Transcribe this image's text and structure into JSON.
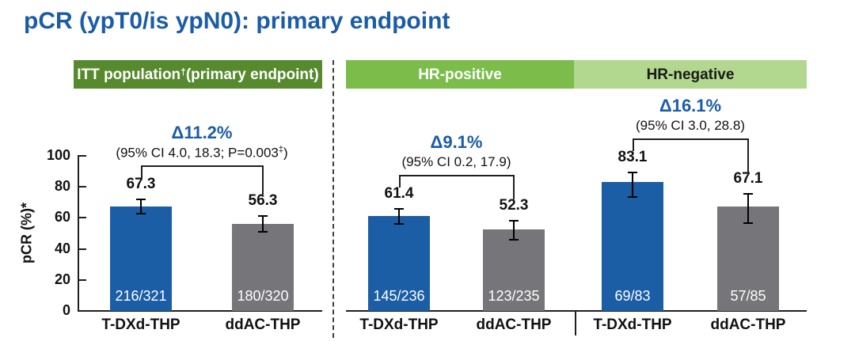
{
  "title": "pCR (ypT0/is ypN0): primary endpoint",
  "colors": {
    "title_blue": "#1B5CA8",
    "delta_blue": "#1B5CA8",
    "bar_blue": "#1B5EA6",
    "bar_gray": "#76767A",
    "header_itt_green": "#578A2E",
    "header_hrpos_green": "#7BBC4B",
    "header_hrneg_green": "#B2D78E",
    "axis_black": "#1f1f1f"
  },
  "panels": {
    "itt": {
      "pre": "ITT population",
      "sup": "†",
      "post": " (primary endpoint)"
    },
    "hr_positive": {
      "label": "HR-positive"
    },
    "hr_negative": {
      "label": "HR-negative"
    }
  },
  "chart_data": {
    "type": "bar",
    "title": "pCR (ypT0/is ypN0): primary endpoint",
    "xlabel": "",
    "ylabel": "pCR (%)*",
    "ylim": [
      0,
      100
    ],
    "yticks": [
      0,
      20,
      40,
      60,
      80,
      100
    ],
    "grid": false,
    "legend": "none",
    "series_colors": {
      "T-DXd-THP": "#1B5EA6",
      "ddAC-THP": "#76767A"
    },
    "groups": [
      {
        "panel": "ITT population† (primary endpoint)",
        "delta_label": "Δ11.2%",
        "ci_pre": "(95% CI 4.0, 18.3; P=0.003",
        "ci_sup": "‡",
        "ci_post": ")",
        "bars": [
          {
            "arm": "T-DXd-THP",
            "value": 67.3,
            "count": "216/321",
            "err_low": 62.0,
            "err_high": 72.5
          },
          {
            "arm": "ddAC-THP",
            "value": 56.3,
            "count": "180/320",
            "err_low": 50.5,
            "err_high": 61.5
          }
        ]
      },
      {
        "panel": "HR-positive",
        "delta_label": "Δ9.1%",
        "ci_pre": "(95% CI 0.2, 17.9)",
        "ci_sup": "",
        "ci_post": "",
        "bars": [
          {
            "arm": "T-DXd-THP",
            "value": 61.4,
            "count": "145/236",
            "err_low": 55.5,
            "err_high": 66.5
          },
          {
            "arm": "ddAC-THP",
            "value": 52.3,
            "count": "123/235",
            "err_low": 45.5,
            "err_high": 58.5
          }
        ]
      },
      {
        "panel": "HR-negative",
        "delta_label": "Δ16.1%",
        "ci_pre": "(95% CI 3.0, 28.8)",
        "ci_sup": "",
        "ci_post": "",
        "bars": [
          {
            "arm": "T-DXd-THP",
            "value": 83.1,
            "count": "69/83",
            "err_low": 73.0,
            "err_high": 90.0
          },
          {
            "arm": "ddAC-THP",
            "value": 67.1,
            "count": "57/85",
            "err_low": 56.0,
            "err_high": 76.0
          }
        ]
      }
    ]
  }
}
